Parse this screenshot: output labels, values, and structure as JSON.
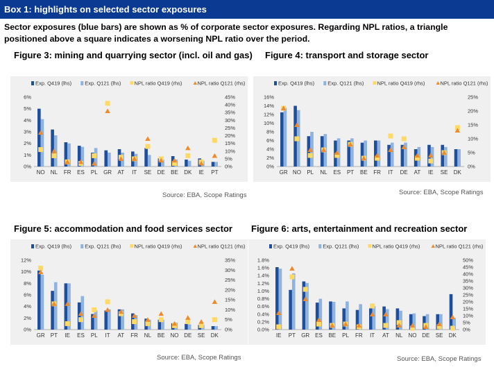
{
  "header": {
    "title": "Box 1: highlights on selected sector exposures",
    "intro": "Sector exposures (blue bars) are shown as % of corporate sector exposures. Regarding NPL ratios, a triangle positioned above a square indicates a worsening NPL ratio over the period."
  },
  "legend": {
    "exp_q419": "Exp. Q419 (lhs)",
    "exp_q121": "Exp. Q121 (lhs)",
    "npl_q419": "NPL ratio Q419 (rhs)",
    "npl_q121": "NPL ratio Q121 (rhs)"
  },
  "colors": {
    "banner": "#0b3a93",
    "exp_q419": "#1f4e9c",
    "exp_q121": "#8fb3dc",
    "npl_q419": "#ffd966",
    "npl_q121": "#ed8b2d",
    "panel_bg": "#f0f0f0"
  },
  "chart_data": [
    {
      "type": "bar",
      "title": "Figure 3: mining and quarrying sector (incl. oil and gas)",
      "source": "Source: EBA, Scope Ratings",
      "categories": [
        "NO",
        "NL",
        "FR",
        "ES",
        "PL",
        "GR",
        "AT",
        "IT",
        "SE",
        "DE",
        "BE",
        "DK",
        "IE",
        "PT"
      ],
      "y_left": {
        "min": 0,
        "max": 6,
        "step": 1,
        "unit": "%",
        "decimals": 0
      },
      "y_right": {
        "min": 0,
        "max": 45,
        "step": 5,
        "unit": "%",
        "decimals": 0
      },
      "series": [
        {
          "name": "Exp. Q419 (lhs)",
          "axis": "left",
          "values": [
            5.0,
            3.2,
            2.1,
            1.8,
            1.2,
            1.4,
            1.5,
            1.3,
            1.6,
            0.7,
            0.9,
            0.6,
            0.7,
            0.4
          ]
        },
        {
          "name": "Exp. Q121 (lhs)",
          "axis": "left",
          "values": [
            4.1,
            2.7,
            2.0,
            1.7,
            1.6,
            1.2,
            1.2,
            1.1,
            1.0,
            0.6,
            0.6,
            0.5,
            0.5,
            0.4
          ]
        },
        {
          "name": "NPL ratio Q419 (rhs)",
          "axis": "right",
          "values": [
            11,
            7,
            3,
            2,
            7,
            41,
            6,
            5,
            13,
            5,
            2,
            7,
            3,
            17
          ]
        },
        {
          "name": "NPL ratio Q121 (rhs)",
          "axis": "right",
          "values": [
            22,
            10,
            3,
            3,
            2,
            36,
            5,
            5,
            18,
            4,
            4,
            12,
            2,
            7
          ]
        }
      ]
    },
    {
      "type": "bar",
      "title": "Figure 4: transport and storage sector",
      "source": "Source: EBA, Scope Ratings",
      "categories": [
        "GR",
        "NO",
        "PL",
        "NL",
        "ES",
        "PT",
        "BE",
        "FR",
        "IT",
        "DE",
        "AT",
        "IE",
        "SE",
        "DK"
      ],
      "y_left": {
        "min": 0,
        "max": 16,
        "step": 2,
        "unit": "%",
        "decimals": 0
      },
      "y_right": {
        "min": 0,
        "max": 25,
        "step": 5,
        "unit": "%",
        "decimals": 0
      },
      "series": [
        {
          "name": "Exp. Q419 (lhs)",
          "axis": "left",
          "values": [
            12.5,
            14.0,
            7.0,
            7.0,
            6.0,
            6.0,
            5.5,
            6.0,
            5.0,
            5.0,
            4.0,
            5.0,
            5.0,
            4.0
          ]
        },
        {
          "name": "Exp. Q121 (lhs)",
          "axis": "left",
          "values": [
            13.5,
            13.0,
            8.0,
            7.5,
            6.5,
            6.5,
            6.0,
            6.0,
            5.5,
            5.5,
            4.5,
            4.5,
            4.5,
            4.0
          ]
        },
        {
          "name": "NPL ratio Q419 (rhs)",
          "axis": "right",
          "values": [
            21,
            10,
            4,
            6,
            4,
            8,
            3,
            3,
            11,
            10,
            3,
            2,
            5,
            14
          ]
        },
        {
          "name": "NPL ratio Q121 (rhs)",
          "axis": "right",
          "values": [
            21,
            15,
            6,
            6,
            5,
            8,
            3,
            4,
            6,
            7,
            4,
            4,
            5,
            13
          ]
        }
      ]
    },
    {
      "type": "bar",
      "title": "Figure 5: accommodation and food services sector",
      "source": "Source: EBA, Scope Ratings",
      "categories": [
        "GR",
        "PT",
        "IE",
        "ES",
        "PL",
        "IT",
        "AT",
        "FR",
        "NL",
        "BE",
        "NO",
        "DE",
        "SE",
        "DK"
      ],
      "y_left": {
        "min": 0,
        "max": 12,
        "step": 2,
        "unit": "%",
        "decimals": 0
      },
      "y_right": {
        "min": 0,
        "max": 35,
        "step": 5,
        "unit": "%",
        "decimals": 0
      },
      "series": [
        {
          "name": "Exp. Q419 (lhs)",
          "axis": "left",
          "values": [
            10.2,
            6.7,
            8.0,
            4.7,
            2.7,
            3.3,
            3.5,
            2.8,
            1.9,
            1.7,
            1.1,
            1.0,
            0.8,
            0.6
          ]
        },
        {
          "name": "Exp. Q121 (lhs)",
          "axis": "left",
          "values": [
            9.5,
            8.2,
            8.0,
            5.8,
            3.3,
            3.5,
            3.5,
            2.5,
            1.7,
            1.7,
            1.2,
            0.9,
            0.8,
            0.6
          ]
        },
        {
          "name": "NPL ratio Q419 (rhs)",
          "axis": "right",
          "values": [
            31,
            13,
            3,
            5,
            10,
            14,
            8,
            4,
            3,
            5,
            2,
            4,
            2,
            5
          ]
        },
        {
          "name": "NPL ratio Q121 (rhs)",
          "axis": "right",
          "values": [
            29,
            13,
            13,
            8,
            7,
            10,
            9,
            7,
            5,
            8,
            3,
            6,
            4,
            14
          ]
        }
      ]
    },
    {
      "type": "bar",
      "title": "Figure 6: arts, entertainment and recreation sector",
      "source": "Source: EBA, Scope Ratings",
      "categories": [
        "IE",
        "PT",
        "GR",
        "ES",
        "BE",
        "PL",
        "FR",
        "IT",
        "AT",
        "NL",
        "NO",
        "DE",
        "SE",
        "DK"
      ],
      "y_left": {
        "min": 0,
        "max": 1.8,
        "step": 0.2,
        "unit": "%",
        "decimals": 1
      },
      "y_right": {
        "min": 0,
        "max": 50,
        "step": 5,
        "unit": "%",
        "decimals": 0
      },
      "series": [
        {
          "name": "Exp. Q419 (lhs)",
          "axis": "left",
          "values": [
            1.62,
            1.03,
            1.25,
            0.7,
            0.73,
            0.55,
            0.51,
            0.55,
            0.6,
            0.55,
            0.4,
            0.35,
            0.4,
            0.92
          ]
        },
        {
          "name": "Exp. Q121 (lhs)",
          "axis": "left",
          "values": [
            1.58,
            1.46,
            1.21,
            0.8,
            0.72,
            0.73,
            0.66,
            0.61,
            0.53,
            0.49,
            0.42,
            0.4,
            0.4,
            0.3
          ]
        },
        {
          "name": "NPL ratio Q419 (rhs)",
          "axis": "right",
          "values": [
            2,
            38,
            29,
            4,
            3,
            4,
            2,
            17,
            3,
            5,
            1,
            3,
            2,
            1
          ]
        },
        {
          "name": "NPL ratio Q121 (rhs)",
          "axis": "right",
          "values": [
            12,
            44,
            22,
            7,
            3,
            4,
            3,
            11,
            11,
            3,
            3,
            2,
            4,
            9
          ]
        }
      ]
    }
  ]
}
